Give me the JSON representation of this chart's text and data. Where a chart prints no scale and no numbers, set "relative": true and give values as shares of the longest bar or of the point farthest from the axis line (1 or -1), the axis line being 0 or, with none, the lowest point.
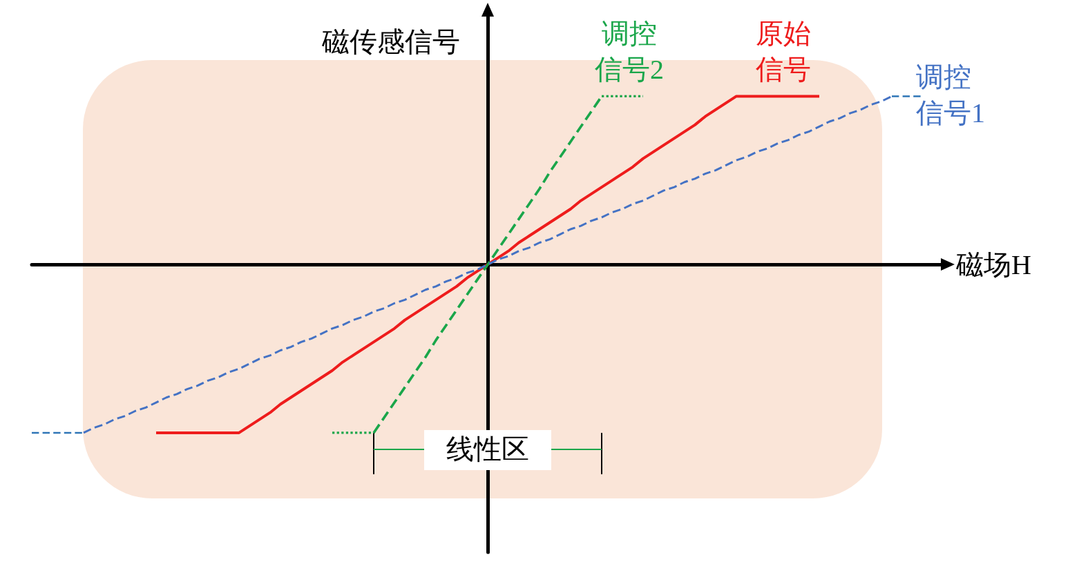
{
  "chart_data": {
    "type": "line",
    "relative": true,
    "xlabel": "磁场H",
    "ylabel": "磁传感信号",
    "annotations": [
      "线性区"
    ],
    "marker": "none",
    "categories": [
      null,
      null,
      null,
      null,
      null,
      null,
      null,
      null,
      null,
      null,
      null,
      null,
      null,
      null,
      null,
      null,
      null,
      null,
      null,
      null,
      null,
      null,
      null,
      null,
      null,
      null,
      null,
      null,
      null,
      null,
      null,
      null,
      null,
      null,
      null,
      null,
      null,
      null,
      null,
      null,
      null,
      null,
      null,
      null,
      null,
      null,
      null,
      null,
      null,
      null,
      null,
      null,
      null,
      null,
      null,
      null,
      null,
      null,
      null,
      null,
      null,
      null,
      null,
      null,
      null,
      null,
      null,
      null,
      null,
      null,
      null,
      null,
      null,
      null,
      null,
      null,
      null,
      null,
      null,
      null,
      null,
      null,
      null,
      null,
      null,
      null,
      null,
      null,
      null
    ],
    "series": [
      {
        "name": "原始信号",
        "color": "#ee1c1c",
        "line_style": "solid",
        "values": [
          null,
          null,
          null,
          null,
          null,
          null,
          null,
          null,
          null,
          null,
          null,
          null,
          -1,
          -1,
          -1,
          -1,
          -1,
          -1,
          -1,
          -1,
          -1,
          -0.96,
          -0.92,
          -0.88,
          -0.83,
          -0.79,
          -0.75,
          -0.71,
          -0.67,
          -0.63,
          -0.58,
          -0.54,
          -0.5,
          -0.46,
          -0.42,
          -0.38,
          -0.33,
          -0.29,
          -0.25,
          -0.21,
          -0.17,
          -0.13,
          -0.08,
          -0.04,
          0,
          0.04,
          0.08,
          0.13,
          0.17,
          0.21,
          0.25,
          0.29,
          0.33,
          0.38,
          0.42,
          0.46,
          0.5,
          0.54,
          0.58,
          0.63,
          0.67,
          0.71,
          0.75,
          0.79,
          0.83,
          0.88,
          0.92,
          0.96,
          1,
          1,
          1,
          1,
          1,
          1,
          1,
          1,
          1,
          null,
          null,
          null,
          null,
          null,
          null,
          null,
          null,
          null,
          null,
          null,
          null
        ]
      },
      {
        "name": "调控信号2",
        "color": "#1aa64a",
        "line_style": "dashed",
        "values": [
          null,
          null,
          null,
          null,
          null,
          null,
          null,
          null,
          null,
          null,
          null,
          null,
          null,
          null,
          null,
          null,
          null,
          null,
          null,
          null,
          null,
          null,
          null,
          null,
          null,
          null,
          null,
          null,
          null,
          null,
          null,
          null,
          null,
          -1,
          -0.91,
          -0.82,
          -0.73,
          -0.64,
          -0.55,
          -0.45,
          -0.36,
          -0.27,
          -0.18,
          -0.09,
          0,
          0.09,
          0.18,
          0.27,
          0.36,
          0.45,
          0.55,
          0.64,
          0.73,
          0.82,
          0.91,
          1,
          null,
          null,
          null,
          null,
          null,
          null,
          null,
          null,
          null,
          null,
          null,
          null,
          null,
          null,
          null,
          null,
          null,
          null,
          null,
          null,
          null,
          null,
          null,
          null,
          null,
          null,
          null,
          null,
          null,
          null,
          null,
          null,
          null
        ]
      },
      {
        "color": "#1aa64a",
        "line_style": "dotted",
        "values": [
          null,
          null,
          null,
          null,
          null,
          null,
          null,
          null,
          null,
          null,
          null,
          null,
          null,
          null,
          null,
          null,
          null,
          null,
          null,
          null,
          null,
          null,
          null,
          null,
          null,
          null,
          null,
          null,
          null,
          -1,
          -1,
          -1,
          -1,
          -1,
          null,
          null,
          null,
          null,
          null,
          null,
          null,
          null,
          null,
          null,
          null,
          null,
          null,
          null,
          null,
          null,
          null,
          null,
          null,
          null,
          null,
          1,
          1,
          1,
          1,
          1,
          null,
          null,
          null,
          null,
          null,
          null,
          null,
          null,
          null,
          null,
          null,
          null,
          null,
          null,
          null,
          null,
          null,
          null,
          null,
          null,
          null,
          null,
          null,
          null,
          null,
          null,
          null,
          null,
          null
        ]
      },
      {
        "name": "调控信号1",
        "color": "#4472c4",
        "line_style": "dashed",
        "values": [
          null,
          null,
          null,
          null,
          null,
          -1,
          -0.97,
          -0.95,
          -0.92,
          -0.9,
          -0.87,
          -0.85,
          -0.82,
          -0.79,
          -0.77,
          -0.74,
          -0.72,
          -0.69,
          -0.67,
          -0.64,
          -0.62,
          -0.59,
          -0.56,
          -0.54,
          -0.51,
          -0.49,
          -0.46,
          -0.44,
          -0.41,
          -0.38,
          -0.36,
          -0.33,
          -0.31,
          -0.28,
          -0.26,
          -0.23,
          -0.21,
          -0.18,
          -0.15,
          -0.13,
          -0.1,
          -0.08,
          -0.05,
          -0.03,
          0,
          0.03,
          0.05,
          0.08,
          0.1,
          0.13,
          0.15,
          0.18,
          0.21,
          0.23,
          0.26,
          0.28,
          0.31,
          0.33,
          0.36,
          0.38,
          0.41,
          0.44,
          0.46,
          0.49,
          0.51,
          0.54,
          0.56,
          0.59,
          0.62,
          0.64,
          0.67,
          0.69,
          0.72,
          0.74,
          0.77,
          0.79,
          0.82,
          0.85,
          0.87,
          0.9,
          0.92,
          0.95,
          0.97,
          1,
          null,
          null,
          null,
          null,
          null
        ]
      },
      {
        "color": "#2e75b6",
        "line_style": "dashed",
        "values": [
          -1,
          -1,
          -1,
          -1,
          -1,
          -1,
          null,
          null,
          null,
          null,
          null,
          null,
          null,
          null,
          null,
          null,
          null,
          null,
          null,
          null,
          null,
          null,
          null,
          null,
          null,
          null,
          null,
          null,
          null,
          null,
          null,
          null,
          null,
          null,
          null,
          null,
          null,
          null,
          null,
          null,
          null,
          null,
          null,
          null,
          null,
          null,
          null,
          null,
          null,
          null,
          null,
          null,
          null,
          null,
          null,
          null,
          null,
          null,
          null,
          null,
          null,
          null,
          null,
          null,
          null,
          null,
          null,
          null,
          null,
          null,
          null,
          null,
          null,
          null,
          null,
          null,
          null,
          null,
          null,
          null,
          null,
          null,
          null,
          1,
          1,
          1,
          1,
          null,
          null
        ]
      }
    ]
  }
}
